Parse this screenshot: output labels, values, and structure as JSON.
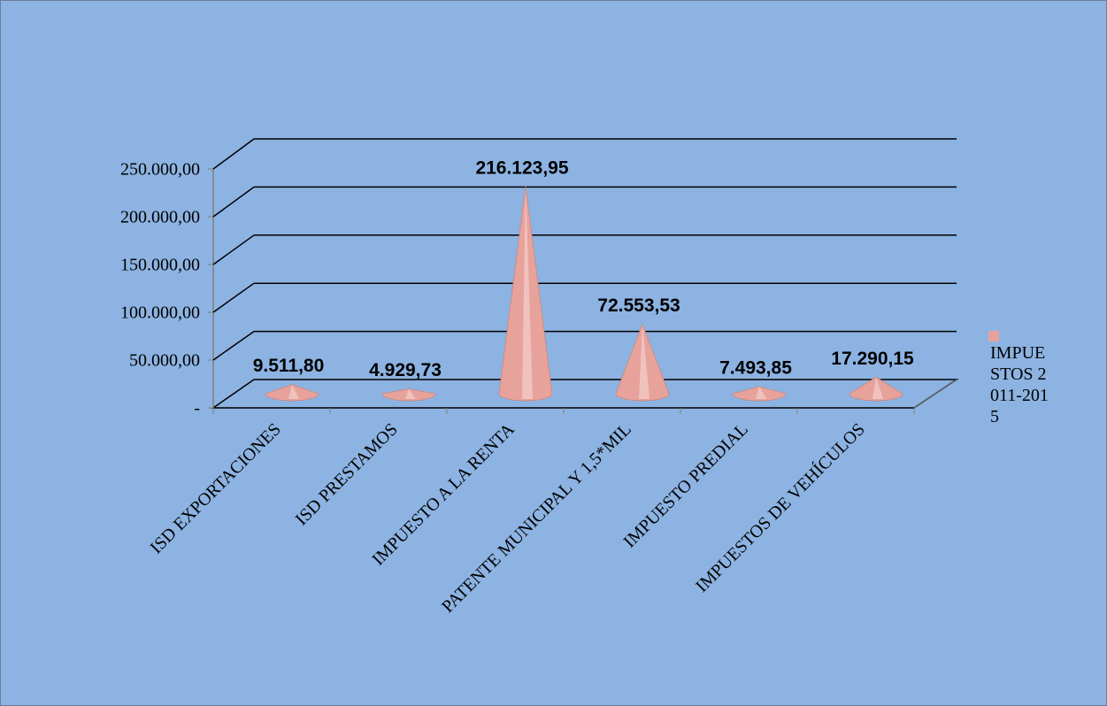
{
  "chart_data": {
    "type": "cone3d",
    "categories": [
      "ISD EXPORTACIONES",
      "ISD PRESTAMOS",
      "IMPUESTO A LA RENTA",
      "PATENTE MUNICIPAL Y 1,5*MIL",
      "IMPUESTO PREDIAL",
      "IMPUESTOS  DE  VEHÍCULOS"
    ],
    "series": [
      {
        "name": "IMPUESTOS 2011-2015",
        "color": "#e8a29c",
        "values": [
          9511.8,
          4929.73,
          216123.95,
          72553.53,
          7493.85,
          17290.15
        ],
        "value_labels": [
          "9.511,80",
          "4.929,73",
          "216.123,95",
          "72.553,53",
          "7.493,85",
          "17.290,15"
        ]
      }
    ],
    "ylim": [
      0,
      250000
    ],
    "yticks": [
      {
        "value": 0,
        "label": "-"
      },
      {
        "value": 50000,
        "label": "50.000,00"
      },
      {
        "value": 100000,
        "label": "100.000,00"
      },
      {
        "value": 150000,
        "label": "150.000,00"
      },
      {
        "value": 200000,
        "label": "200.000,00"
      },
      {
        "value": 250000,
        "label": "250.000,00"
      }
    ],
    "grid": true,
    "legend": "right"
  }
}
